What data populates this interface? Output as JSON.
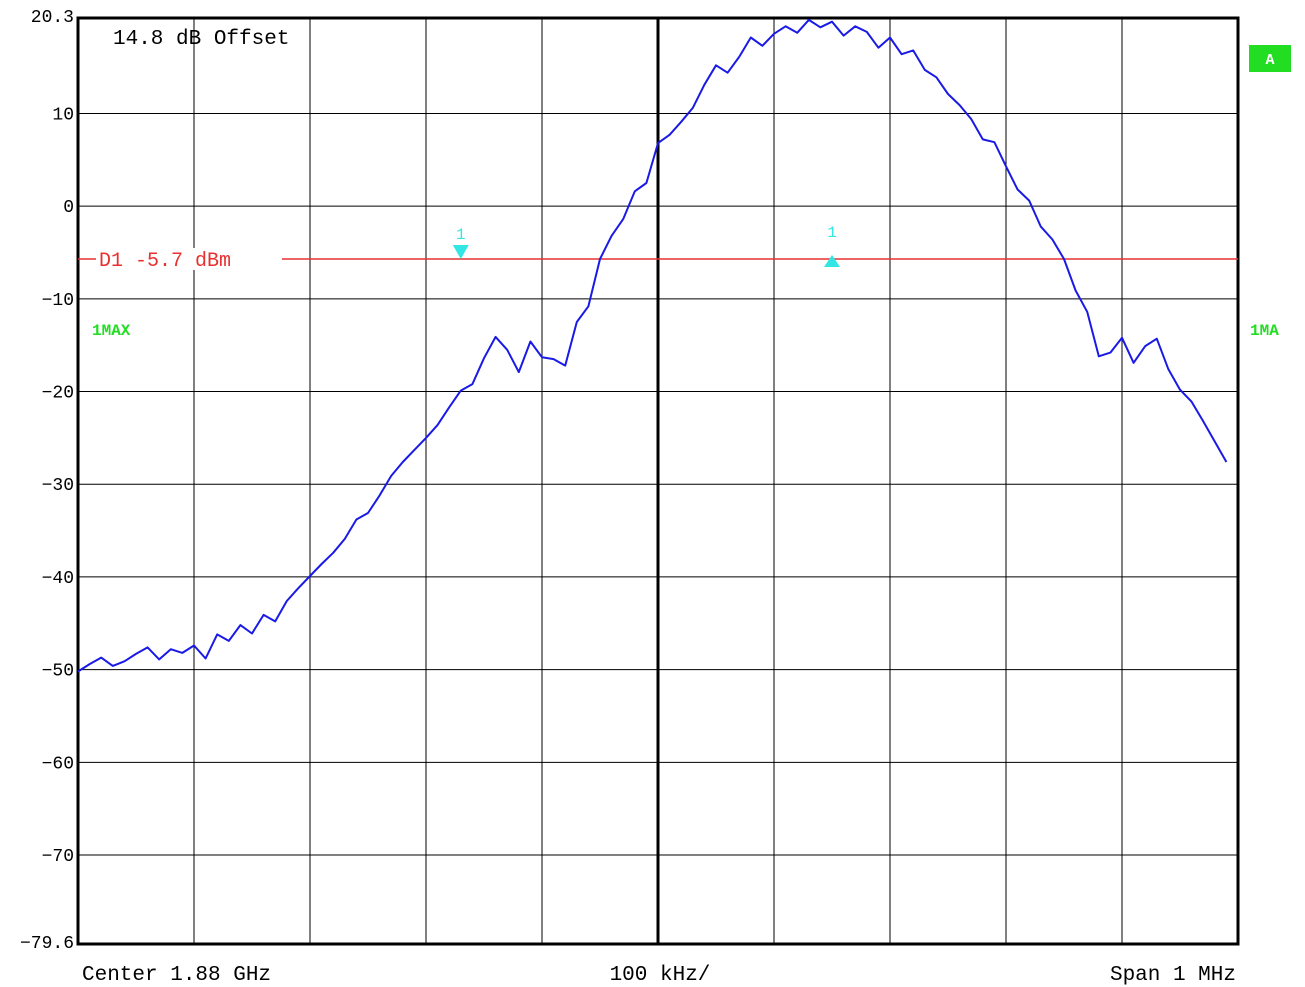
{
  "chart_data": {
    "type": "line",
    "title": "",
    "offset_label": "14.8 dB Offset",
    "y_unit": "dBm",
    "ylim": [
      -79.6,
      20.3
    ],
    "y_ticks": [
      {
        "value": 20.3,
        "label": "20.3"
      },
      {
        "value": 10,
        "label": "10"
      },
      {
        "value": 0,
        "label": "0"
      },
      {
        "value": -10,
        "label": "−10"
      },
      {
        "value": -20,
        "label": "−20"
      },
      {
        "value": -30,
        "label": "−30"
      },
      {
        "value": -40,
        "label": "−40"
      },
      {
        "value": -50,
        "label": "−50"
      },
      {
        "value": -60,
        "label": "−60"
      },
      {
        "value": -70,
        "label": "−70"
      },
      {
        "value": -79.6,
        "label": "−79.6"
      }
    ],
    "x_unit": "MHz offset from center",
    "xlim": [
      -0.5,
      0.5
    ],
    "x_divisions": 10,
    "x_labels": {
      "left": "Center 1.88 GHz",
      "center": "100 kHz/",
      "right": "Span 1 MHz"
    },
    "grid": true,
    "display_line": {
      "label": "D1 -5.7 dBm",
      "value": -5.7,
      "color": "#e83030"
    },
    "markers": [
      {
        "label": "1",
        "x": -0.17,
        "y": -5.7,
        "direction": "down"
      },
      {
        "label": "1",
        "x": 0.15,
        "y": -5.7,
        "direction": "up"
      }
    ],
    "trace_label_left": "1MAX",
    "trace_label_right": "1MA",
    "badge_label": "A",
    "series": [
      {
        "color": "#1a1ae6",
        "points": [
          [
            -0.5,
            -50.2
          ],
          [
            -0.49,
            -49.4
          ],
          [
            -0.48,
            -48.7
          ],
          [
            -0.47,
            -49.6
          ],
          [
            -0.46,
            -49.1
          ],
          [
            -0.45,
            -48.3
          ],
          [
            -0.44,
            -47.6
          ],
          [
            -0.43,
            -48.9
          ],
          [
            -0.42,
            -47.8
          ],
          [
            -0.41,
            -48.2
          ],
          [
            -0.4,
            -47.4
          ],
          [
            -0.39,
            -48.8
          ],
          [
            -0.38,
            -46.2
          ],
          [
            -0.37,
            -46.9
          ],
          [
            -0.36,
            -45.2
          ],
          [
            -0.35,
            -46.1
          ],
          [
            -0.34,
            -44.1
          ],
          [
            -0.33,
            -44.8
          ],
          [
            -0.32,
            -42.6
          ],
          [
            -0.31,
            -41.2
          ],
          [
            -0.3,
            -39.9
          ],
          [
            -0.29,
            -38.6
          ],
          [
            -0.28,
            -37.4
          ],
          [
            -0.27,
            -35.9
          ],
          [
            -0.26,
            -33.8
          ],
          [
            -0.25,
            -33.1
          ],
          [
            -0.24,
            -31.2
          ],
          [
            -0.23,
            -29.1
          ],
          [
            -0.22,
            -27.6
          ],
          [
            -0.21,
            -26.3
          ],
          [
            -0.2,
            -25.0
          ],
          [
            -0.19,
            -23.6
          ],
          [
            -0.18,
            -21.7
          ],
          [
            -0.17,
            -19.9
          ],
          [
            -0.16,
            -19.2
          ],
          [
            -0.15,
            -16.4
          ],
          [
            -0.14,
            -14.1
          ],
          [
            -0.13,
            -15.5
          ],
          [
            -0.12,
            -17.9
          ],
          [
            -0.11,
            -14.6
          ],
          [
            -0.1,
            -16.3
          ],
          [
            -0.09,
            -16.5
          ],
          [
            -0.08,
            -17.2
          ],
          [
            -0.07,
            -12.5
          ],
          [
            -0.06,
            -10.8
          ],
          [
            -0.05,
            -5.7
          ],
          [
            -0.04,
            -3.2
          ],
          [
            -0.03,
            -1.4
          ],
          [
            -0.02,
            1.6
          ],
          [
            -0.01,
            2.5
          ],
          [
            0.0,
            6.8
          ],
          [
            0.01,
            7.7
          ],
          [
            0.02,
            9.1
          ],
          [
            0.03,
            10.6
          ],
          [
            0.04,
            13.1
          ],
          [
            0.05,
            15.2
          ],
          [
            0.06,
            14.4
          ],
          [
            0.07,
            16.1
          ],
          [
            0.08,
            18.2
          ],
          [
            0.09,
            17.3
          ],
          [
            0.1,
            18.6
          ],
          [
            0.11,
            19.4
          ],
          [
            0.12,
            18.7
          ],
          [
            0.13,
            20.1
          ],
          [
            0.14,
            19.3
          ],
          [
            0.15,
            19.9
          ],
          [
            0.16,
            18.4
          ],
          [
            0.17,
            19.4
          ],
          [
            0.18,
            18.8
          ],
          [
            0.19,
            17.1
          ],
          [
            0.2,
            18.2
          ],
          [
            0.21,
            16.4
          ],
          [
            0.22,
            16.8
          ],
          [
            0.23,
            14.7
          ],
          [
            0.24,
            13.9
          ],
          [
            0.25,
            12.1
          ],
          [
            0.26,
            10.9
          ],
          [
            0.27,
            9.4
          ],
          [
            0.28,
            7.2
          ],
          [
            0.29,
            6.9
          ],
          [
            0.3,
            4.3
          ],
          [
            0.31,
            1.8
          ],
          [
            0.32,
            0.6
          ],
          [
            0.33,
            -2.2
          ],
          [
            0.34,
            -3.6
          ],
          [
            0.35,
            -5.7
          ],
          [
            0.36,
            -9.1
          ],
          [
            0.37,
            -11.4
          ],
          [
            0.38,
            -16.2
          ],
          [
            0.39,
            -15.8
          ],
          [
            0.4,
            -14.2
          ],
          [
            0.41,
            -16.9
          ],
          [
            0.42,
            -15.1
          ],
          [
            0.43,
            -14.3
          ],
          [
            0.44,
            -17.6
          ],
          [
            0.45,
            -19.8
          ],
          [
            0.46,
            -21.1
          ],
          [
            0.47,
            -23.2
          ],
          [
            0.48,
            -25.4
          ],
          [
            0.49,
            -27.6
          ]
        ]
      }
    ]
  }
}
